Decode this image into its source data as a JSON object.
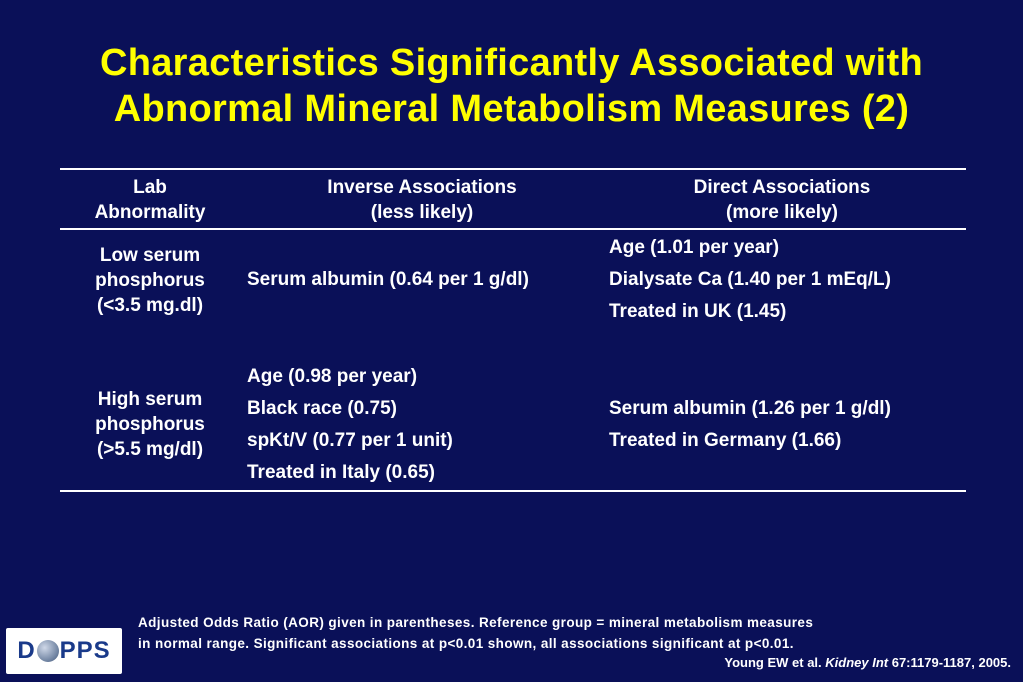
{
  "title": {
    "line1": "Characteristics Significantly Associated with",
    "line2": "Abnormal Mineral Metabolism Measures (2)"
  },
  "table": {
    "headers": {
      "lab_line1": "Lab",
      "lab_line2": "Abnormality",
      "inverse_line1": "Inverse Associations",
      "inverse_line2": "(less likely)",
      "direct_line1": "Direct Associations",
      "direct_line2": "(more likely)"
    },
    "rows": [
      {
        "lab": [
          "Low serum",
          "phosphorus",
          "(<3.5 mg.dl)"
        ],
        "inverse": [
          "Serum albumin (0.64 per 1 g/dl)"
        ],
        "direct": [
          "Age (1.01 per year)",
          "Dialysate Ca (1.40 per 1 mEq/L)",
          "Treated in UK (1.45)"
        ]
      },
      {
        "lab": [
          "High serum",
          "phosphorus",
          "(>5.5 mg/dl)"
        ],
        "inverse": [
          "Age (0.98 per year)",
          "Black race (0.75)",
          "spKt/V (0.77 per 1 unit)",
          "Treated in Italy (0.65)"
        ],
        "direct": [
          "Serum albumin (1.26 per 1 g/dl)",
          "Treated in Germany (1.66)"
        ]
      }
    ]
  },
  "footnote": {
    "line1": "Adjusted Odds Ratio (AOR) given in parentheses.  Reference group = mineral metabolism measures",
    "line2": "in normal range.  Significant associations at p<0.01 shown, all associations significant at p<0.01."
  },
  "citation": {
    "prefix": "Young EW et al. ",
    "journal": "Kidney Int",
    "suffix": " 67:1179-1187, 2005."
  },
  "logo": {
    "left": "D",
    "right": "PPS"
  },
  "colors": {
    "background": "#0a1058",
    "title": "#ffff00",
    "text": "#ffffff"
  }
}
